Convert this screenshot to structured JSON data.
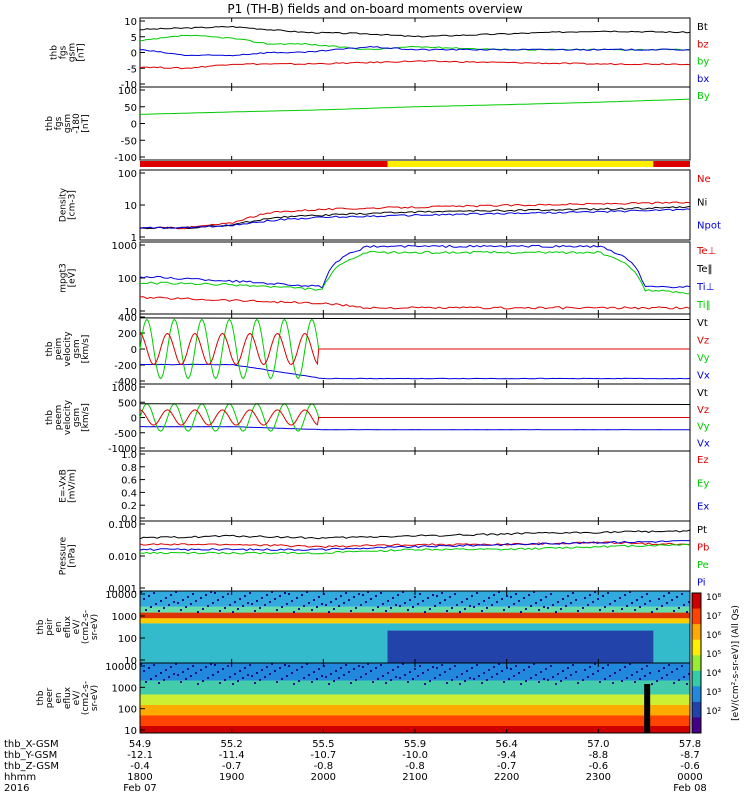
{
  "title": "P1 (TH-B) fields and on-board moments overview",
  "colors": {
    "black": "#000000",
    "red": "#dd0000",
    "green": "#00cc00",
    "blue": "#0000dd",
    "yellow": "#ffee00"
  },
  "panels": [
    {
      "id": "fgs",
      "ylabel": [
        "thb",
        "fgs",
        "gsm",
        "[nT]"
      ],
      "yticks": [
        "10",
        "5",
        "0",
        "-5",
        "-10"
      ],
      "legend": [
        {
          "t": "Bt",
          "c": "black"
        },
        {
          "t": "bz",
          "c": "red"
        },
        {
          "t": "by",
          "c": "green"
        },
        {
          "t": "bx",
          "c": "blue"
        }
      ]
    },
    {
      "id": "fgs_th",
      "ylabel": [
        "thb",
        "fgs",
        "gsm",
        "-180",
        "[nT]"
      ],
      "yticks": [
        "100",
        "50",
        "0",
        "-50",
        "-100"
      ],
      "legend": [
        {
          "t": "By",
          "c": "green"
        }
      ]
    },
    {
      "id": "density",
      "ylabel": [
        "Density",
        "[cm-3]"
      ],
      "yticks": [
        "100",
        "10",
        "1"
      ],
      "legend": [
        {
          "t": "Ne",
          "c": "red"
        },
        {
          "t": "Ni",
          "c": "black"
        },
        {
          "t": "Npot",
          "c": "blue"
        }
      ]
    },
    {
      "id": "temp",
      "ylabel": [
        "mpgt3",
        "[eV]"
      ],
      "yticks": [
        "1000",
        "100",
        "10"
      ],
      "legend": [
        {
          "t": "Te⊥",
          "c": "red"
        },
        {
          "t": "Te‖",
          "c": "black"
        },
        {
          "t": "Ti⊥",
          "c": "blue"
        },
        {
          "t": "Ti‖",
          "c": "green"
        }
      ]
    },
    {
      "id": "peim",
      "ylabel": [
        "thb",
        "peim",
        "velocity",
        "gsm",
        "[km/s]"
      ],
      "yticks": [
        "400",
        "200",
        "0",
        "-200",
        "-400"
      ],
      "legend": [
        {
          "t": "Vt",
          "c": "black"
        },
        {
          "t": "Vz",
          "c": "red"
        },
        {
          "t": "Vy",
          "c": "green"
        },
        {
          "t": "Vx",
          "c": "blue"
        }
      ]
    },
    {
      "id": "peem",
      "ylabel": [
        "thb",
        "peem",
        "velocity",
        "gsm",
        "[km/s]"
      ],
      "yticks": [
        "1000",
        "500",
        "0",
        "-500",
        "-1000"
      ],
      "legend": [
        {
          "t": "Vt",
          "c": "black"
        },
        {
          "t": "Vz",
          "c": "red"
        },
        {
          "t": "Vy",
          "c": "green"
        },
        {
          "t": "Vx",
          "c": "blue"
        }
      ]
    },
    {
      "id": "efield",
      "ylabel": [
        "E=-VxB",
        "[mV/m]"
      ],
      "yticks": [
        "1.0",
        "0.8",
        "0.6",
        "0.4",
        "0.2",
        "0.0"
      ],
      "legend": [
        {
          "t": "Ez",
          "c": "red"
        },
        {
          "t": "Ey",
          "c": "green"
        },
        {
          "t": "Ex",
          "c": "blue"
        }
      ]
    },
    {
      "id": "pressure",
      "ylabel": [
        "Pressure",
        "[nPa]"
      ],
      "yticks": [
        "0.100",
        "0.010",
        "0.001"
      ],
      "legend": [
        {
          "t": "Pt",
          "c": "black"
        },
        {
          "t": "Pb",
          "c": "red"
        },
        {
          "t": "Pe",
          "c": "green"
        },
        {
          "t": "Pi",
          "c": "blue"
        }
      ]
    },
    {
      "id": "peir",
      "ylabel": [
        "thb",
        "peir",
        "en",
        "eflux",
        "eV/",
        "(cm2-s-",
        "sr-eV)"
      ],
      "yticks": [
        "10000",
        "1000",
        "100",
        "10"
      ],
      "legend": []
    },
    {
      "id": "peer",
      "ylabel": [
        "thb",
        "peer",
        "en",
        "eflux",
        "eV/",
        "(cm2-s-",
        "sr-eV)"
      ],
      "yticks": [
        "10000",
        "1000",
        "100",
        "10"
      ],
      "legend": []
    }
  ],
  "colorbar": {
    "ticks": [
      "10⁸",
      "10⁷",
      "10⁶",
      "10⁵",
      "10⁴",
      "10³",
      "10²"
    ],
    "label": "[eV/(cm²-s-sr-eV)] (All Qs)"
  },
  "xaxis": {
    "rows": [
      {
        "label": "thb_X-GSM",
        "values": [
          "54.9",
          "55.2",
          "55.5",
          "55.9",
          "56.4",
          "57.0",
          "57.8"
        ]
      },
      {
        "label": "thb_Y-GSM",
        "values": [
          "-12.1",
          "-11.4",
          "-10.7",
          "-10.0",
          "-9.4",
          "-8.8",
          "-8.7"
        ]
      },
      {
        "label": "thb_Z-GSM",
        "values": [
          "-0.4",
          "-0.7",
          "-0.8",
          "-0.8",
          "-0.7",
          "-0.6",
          "-0.6"
        ]
      },
      {
        "label": "hhmm",
        "values": [
          "1800",
          "1900",
          "2000",
          "2100",
          "2200",
          "2300",
          "0000"
        ]
      }
    ],
    "year": "2016",
    "date_start": "Feb 07",
    "date_end": "Feb 08"
  },
  "chart_data": {
    "type": "line",
    "title": "P1 (TH-B) fields and on-board moments overview",
    "x_hours": [
      18,
      19,
      20,
      21,
      22,
      23,
      24
    ],
    "series": [
      {
        "name": "Bt",
        "panel": "fgs",
        "x": [
          18,
          18.5,
          19,
          19.4,
          19.8,
          20.5,
          21,
          22,
          23,
          24
        ],
        "y": [
          8,
          8.5,
          9,
          8,
          7,
          6.5,
          5.5,
          6.5,
          7.5,
          7
        ]
      },
      {
        "name": "bz",
        "panel": "fgs",
        "x": [
          18,
          18.5,
          19,
          19.4,
          19.8,
          20.5,
          21,
          22,
          23,
          24
        ],
        "y": [
          -5,
          -5.5,
          -4,
          -4,
          -4,
          -3.5,
          -3,
          -3.5,
          -4,
          -4
        ]
      },
      {
        "name": "by",
        "panel": "fgs",
        "x": [
          18,
          18.5,
          19,
          19.4,
          19.8,
          20.5,
          21,
          22,
          23,
          24
        ],
        "y": [
          4,
          6,
          5,
          3,
          3,
          1,
          2,
          1,
          1,
          1
        ]
      },
      {
        "name": "bx",
        "panel": "fgs",
        "x": [
          18,
          18.5,
          19,
          19.4,
          19.8,
          20.5,
          21,
          22,
          23,
          24
        ],
        "y": [
          1,
          -1,
          -1,
          0,
          0,
          2,
          1,
          1,
          1,
          1
        ]
      },
      {
        "name": "By",
        "panel": "fgs_th",
        "x": [
          18,
          19,
          20,
          21,
          22,
          23,
          24
        ],
        "y": [
          30,
          38,
          45,
          55,
          62,
          70,
          80
        ]
      },
      {
        "name": "Ne",
        "panel": "density",
        "x": [
          18,
          18.5,
          19,
          19.5,
          20,
          21,
          22,
          23,
          24
        ],
        "y": [
          2,
          2,
          3,
          8,
          10,
          12,
          14,
          16,
          18
        ]
      },
      {
        "name": "Ni",
        "panel": "density",
        "x": [
          18,
          18.5,
          19,
          19.5,
          20,
          21,
          22,
          23,
          24
        ],
        "y": [
          2,
          2,
          2.5,
          5,
          6,
          8,
          9,
          10,
          12
        ]
      },
      {
        "name": "Npot",
        "panel": "density",
        "x": [
          18,
          18.5,
          19,
          19.5,
          20,
          21,
          22,
          23,
          24
        ],
        "y": [
          2,
          2,
          2.5,
          4,
          5,
          6,
          7,
          8,
          10
        ]
      },
      {
        "name": "Te⊥",
        "panel": "temp",
        "x": [
          18,
          19,
          20,
          20.5,
          21,
          22,
          23,
          23.5,
          24
        ],
        "y": [
          30,
          25,
          20,
          15,
          15,
          15,
          15,
          15,
          15
        ]
      },
      {
        "name": "Ti⊥",
        "panel": "temp",
        "x": [
          18,
          19,
          20,
          20.5,
          21,
          22,
          23,
          23.5,
          24
        ],
        "y": [
          120,
          90,
          60,
          900,
          900,
          900,
          900,
          60,
          60
        ]
      },
      {
        "name": "Ti‖",
        "panel": "temp",
        "x": [
          18,
          19,
          20,
          20.5,
          21,
          22,
          23,
          23.5,
          24
        ],
        "y": [
          80,
          70,
          50,
          600,
          600,
          600,
          600,
          50,
          40
        ]
      },
      {
        "name": "Vx peim",
        "panel": "peim",
        "x": [
          18,
          19,
          20,
          21,
          22,
          23,
          24
        ],
        "y": [
          -200,
          -200,
          -380,
          -380,
          -380,
          -380,
          -380
        ]
      },
      {
        "name": "Vx peem",
        "panel": "peem",
        "x": [
          18,
          19,
          20,
          21,
          22,
          23,
          24
        ],
        "y": [
          -300,
          -300,
          -400,
          -400,
          -400,
          -400,
          -400
        ]
      },
      {
        "name": "Pt",
        "panel": "pressure",
        "x": [
          18,
          19,
          20,
          21,
          22,
          23,
          24
        ],
        "y": [
          0.05,
          0.06,
          0.05,
          0.06,
          0.07,
          0.08,
          0.09
        ]
      },
      {
        "name": "Pb",
        "panel": "pressure",
        "x": [
          18,
          19,
          20,
          21,
          22,
          23,
          24
        ],
        "y": [
          0.03,
          0.03,
          0.025,
          0.03,
          0.03,
          0.035,
          0.03
        ]
      },
      {
        "name": "Pe",
        "panel": "pressure",
        "x": [
          18,
          19,
          20,
          21,
          22,
          23,
          24
        ],
        "y": [
          0.015,
          0.015,
          0.015,
          0.02,
          0.02,
          0.025,
          0.03
        ]
      },
      {
        "name": "Pi",
        "panel": "pressure",
        "x": [
          18,
          19,
          20,
          21,
          22,
          23,
          24
        ],
        "y": [
          0.02,
          0.02,
          0.02,
          0.025,
          0.03,
          0.035,
          0.04
        ]
      }
    ]
  }
}
